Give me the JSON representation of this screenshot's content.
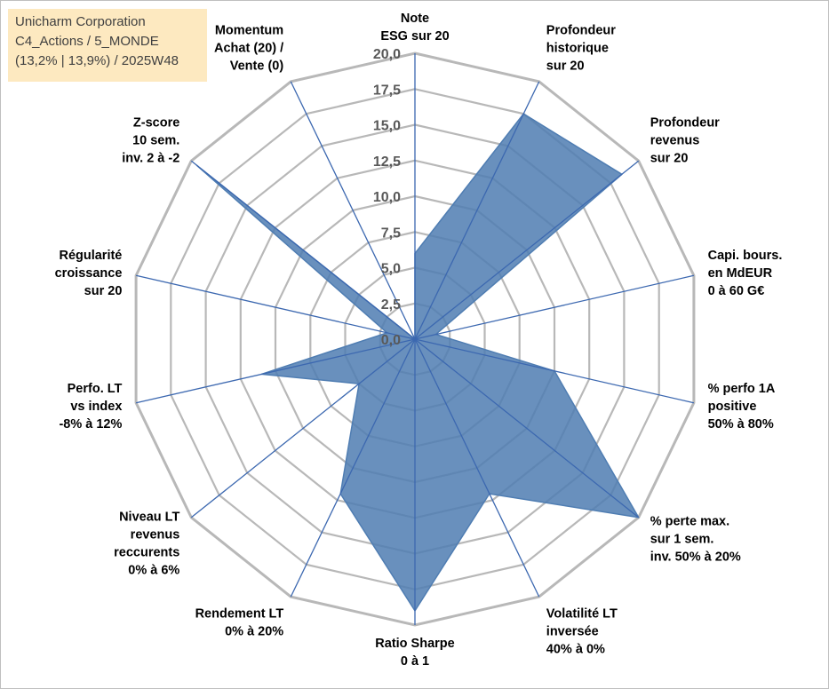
{
  "info_box": {
    "company": "Unicharm Corporation",
    "category": "C4_Actions / 5_MONDE",
    "stats": "(13,2% | 13,9%) / 2025W48"
  },
  "chart_data": {
    "type": "radar",
    "title": "",
    "rmin": 0,
    "rmax": 20,
    "ticks": [
      "0,0",
      "2,5",
      "5,0",
      "7,5",
      "10,0",
      "12,5",
      "15,0",
      "17,5",
      "20,0"
    ],
    "grid": true,
    "axes": [
      {
        "label": [
          "Note",
          "ESG sur 20"
        ],
        "value": 6
      },
      {
        "label": [
          "Profondeur",
          "historique",
          "sur 20"
        ],
        "value": 17.5
      },
      {
        "label": [
          "Profondeur",
          "revenus",
          "sur 20"
        ],
        "value": 18.5
      },
      {
        "label": [
          "Capi. bours.",
          "en MdEUR",
          "0 à 60 G€"
        ],
        "value": 1.5
      },
      {
        "label": [
          "% perfo 1A",
          "positive",
          "50% à 80%"
        ],
        "value": 10
      },
      {
        "label": [
          "% perte max.",
          "sur 1 sem.",
          "inv. 50% à 20%"
        ],
        "value": 20
      },
      {
        "label": [
          "Volatilité LT",
          "inversée",
          "40% à 0%"
        ],
        "value": 12
      },
      {
        "label": [
          "Ratio Sharpe",
          "0 à 1"
        ],
        "value": 19
      },
      {
        "label": [
          "Rendement LT",
          "0% à 20%"
        ],
        "value": 12
      },
      {
        "label": [
          "Niveau LT",
          "revenus",
          "reccurents",
          "0% à 6%"
        ],
        "value": 5
      },
      {
        "label": [
          "Perfo. LT",
          "vs index",
          "-8% à 12%"
        ],
        "value": 11
      },
      {
        "label": [
          "Régularité",
          "croissance",
          "sur 20"
        ],
        "value": 2
      },
      {
        "label": [
          "Z-score",
          "10 sem.",
          "inv. 2 à -2"
        ],
        "value": 19.5
      },
      {
        "label": [
          "Momentum",
          "Achat (20) /",
          "Vente (0)"
        ],
        "value": 0
      }
    ],
    "colors": {
      "fill": "#4f7db2",
      "spoke": "#3c68b0",
      "ring": "#b8b8b8",
      "text": "#000000",
      "tick_text": "#595959"
    }
  }
}
